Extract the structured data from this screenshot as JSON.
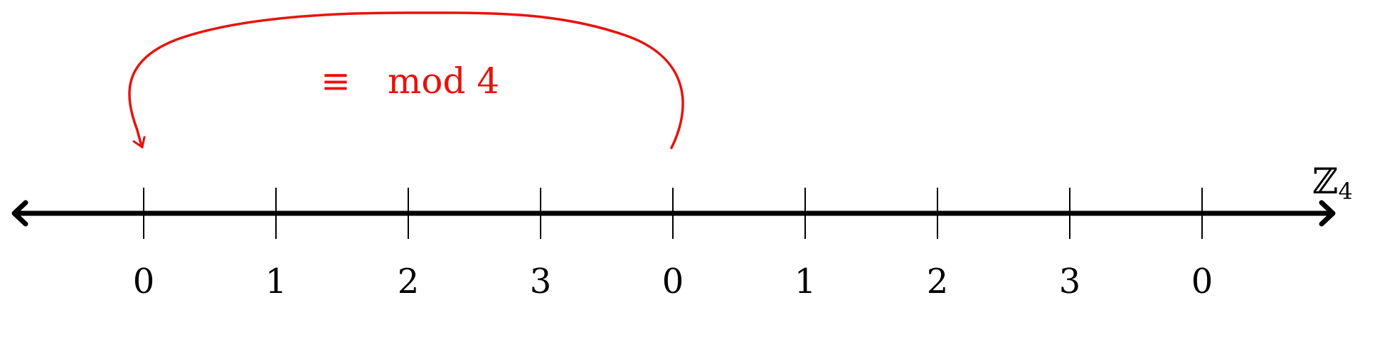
{
  "colors": {
    "axis": "#000000",
    "annotation": "#e8120c"
  },
  "number_line": {
    "ticks": [
      "0",
      "1",
      "2",
      "3",
      "0",
      "1",
      "2",
      "3",
      "0"
    ],
    "set_label": "ℤ",
    "set_subscript": "4",
    "arrows": "both-ends"
  },
  "annotation": {
    "symbol": "≡",
    "text": "mod 4",
    "arrow_from_tick": 4,
    "arrow_to_tick": 0
  }
}
